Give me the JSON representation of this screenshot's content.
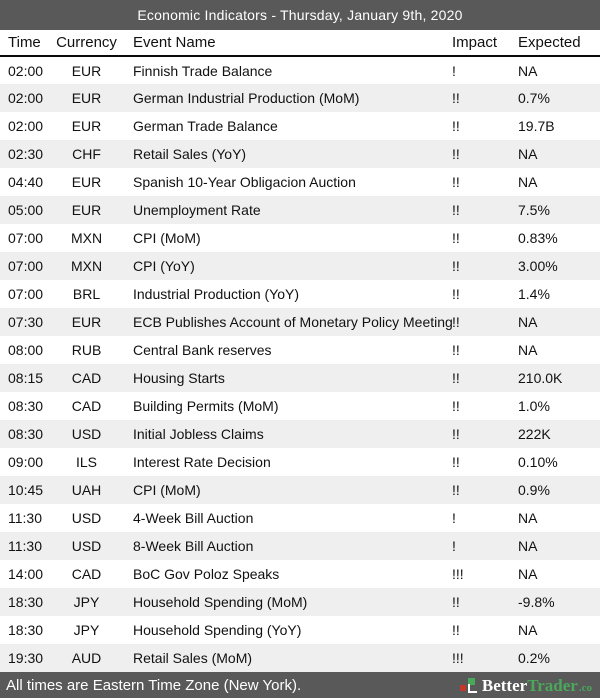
{
  "header": {
    "title": "Economic Indicators - Thursday, January 9th, 2020"
  },
  "table": {
    "columns": [
      "Time",
      "Currency",
      "Event Name",
      "Impact",
      "Expected"
    ],
    "rows": [
      {
        "time": "02:00",
        "currency": "EUR",
        "event": "Finnish Trade Balance",
        "impact": "!",
        "expected": "NA"
      },
      {
        "time": "02:00",
        "currency": "EUR",
        "event": "German Industrial Production (MoM)",
        "impact": "!!",
        "expected": "0.7%"
      },
      {
        "time": "02:00",
        "currency": "EUR",
        "event": "German Trade Balance",
        "impact": "!!",
        "expected": "19.7B"
      },
      {
        "time": "02:30",
        "currency": "CHF",
        "event": "Retail Sales (YoY)",
        "impact": "!!",
        "expected": "NA"
      },
      {
        "time": "04:40",
        "currency": "EUR",
        "event": "Spanish 10-Year Obligacion Auction",
        "impact": "!!",
        "expected": "NA"
      },
      {
        "time": "05:00",
        "currency": "EUR",
        "event": "Unemployment Rate",
        "impact": "!!",
        "expected": "7.5%"
      },
      {
        "time": "07:00",
        "currency": "MXN",
        "event": "CPI (MoM)",
        "impact": "!!",
        "expected": "0.83%"
      },
      {
        "time": "07:00",
        "currency": "MXN",
        "event": "CPI (YoY)",
        "impact": "!!",
        "expected": "3.00%"
      },
      {
        "time": "07:00",
        "currency": "BRL",
        "event": "Industrial Production (YoY)",
        "impact": "!!",
        "expected": "1.4%"
      },
      {
        "time": "07:30",
        "currency": "EUR",
        "event": "ECB Publishes Account of Monetary Policy Meeting",
        "impact": "!!",
        "expected": "NA"
      },
      {
        "time": "08:00",
        "currency": "RUB",
        "event": "Central Bank reserves",
        "impact": "!!",
        "expected": "NA"
      },
      {
        "time": "08:15",
        "currency": "CAD",
        "event": "Housing Starts",
        "impact": "!!",
        "expected": "210.0K"
      },
      {
        "time": "08:30",
        "currency": "CAD",
        "event": "Building Permits (MoM)",
        "impact": "!!",
        "expected": "1.0%"
      },
      {
        "time": "08:30",
        "currency": "USD",
        "event": "Initial Jobless Claims",
        "impact": "!!",
        "expected": "222K"
      },
      {
        "time": "09:00",
        "currency": "ILS",
        "event": "Interest Rate Decision",
        "impact": "!!",
        "expected": "0.10%"
      },
      {
        "time": "10:45",
        "currency": "UAH",
        "event": "CPI (MoM)",
        "impact": "!!",
        "expected": "0.9%"
      },
      {
        "time": "11:30",
        "currency": "USD",
        "event": "4-Week Bill Auction",
        "impact": "!",
        "expected": "NA"
      },
      {
        "time": "11:30",
        "currency": "USD",
        "event": "8-Week Bill Auction",
        "impact": "!",
        "expected": "NA"
      },
      {
        "time": "14:00",
        "currency": "CAD",
        "event": "BoC Gov Poloz Speaks",
        "impact": "!!!",
        "expected": "NA"
      },
      {
        "time": "18:30",
        "currency": "JPY",
        "event": "Household Spending (MoM)",
        "impact": "!!",
        "expected": "-9.8%"
      },
      {
        "time": "18:30",
        "currency": "JPY",
        "event": "Household Spending (YoY)",
        "impact": "!!",
        "expected": "NA"
      },
      {
        "time": "19:30",
        "currency": "AUD",
        "event": "Retail Sales (MoM)",
        "impact": "!!!",
        "expected": "0.2%"
      }
    ]
  },
  "footer": {
    "note": "All times are Eastern Time Zone (New York).",
    "brand": {
      "name_part1": "Better",
      "name_part2": "Trader",
      "tld": ".co"
    }
  },
  "colors": {
    "bar_background": "#595959",
    "row_alt_background": "#efefef",
    "brand_green": "#4aa85a",
    "brand_red": "#c0392b",
    "text_dark": "#111111",
    "text_light": "#ffffff"
  }
}
